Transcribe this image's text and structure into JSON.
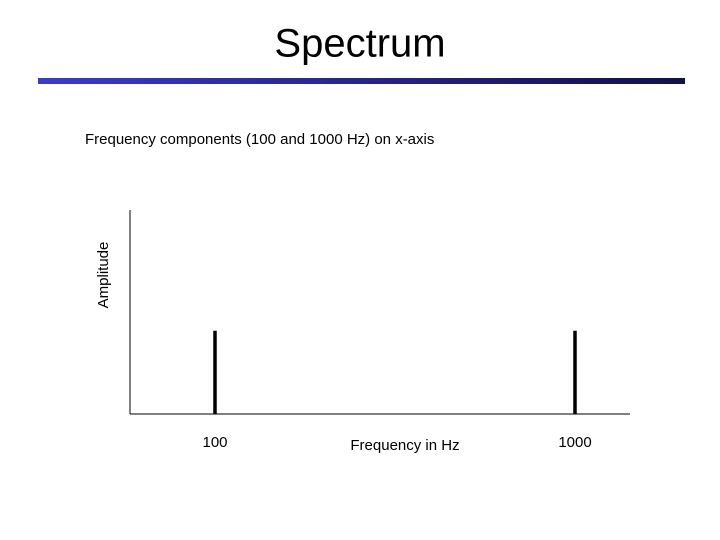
{
  "chart_data": {
    "type": "stem",
    "title": "Spectrum",
    "subtitle": "Frequency components (100 and 1000 Hz) on x-axis",
    "x_label": "Frequency in Hz",
    "y_label": "Amplitude",
    "x": [
      100,
      1000
    ],
    "values": [
      1,
      1
    ],
    "color": "#000000",
    "xlim": [
      -112.5,
      1137.5
    ],
    "xticks": [
      100,
      1000
    ],
    "ylim": [
      0,
      2.45
    ],
    "grid": false
  }
}
